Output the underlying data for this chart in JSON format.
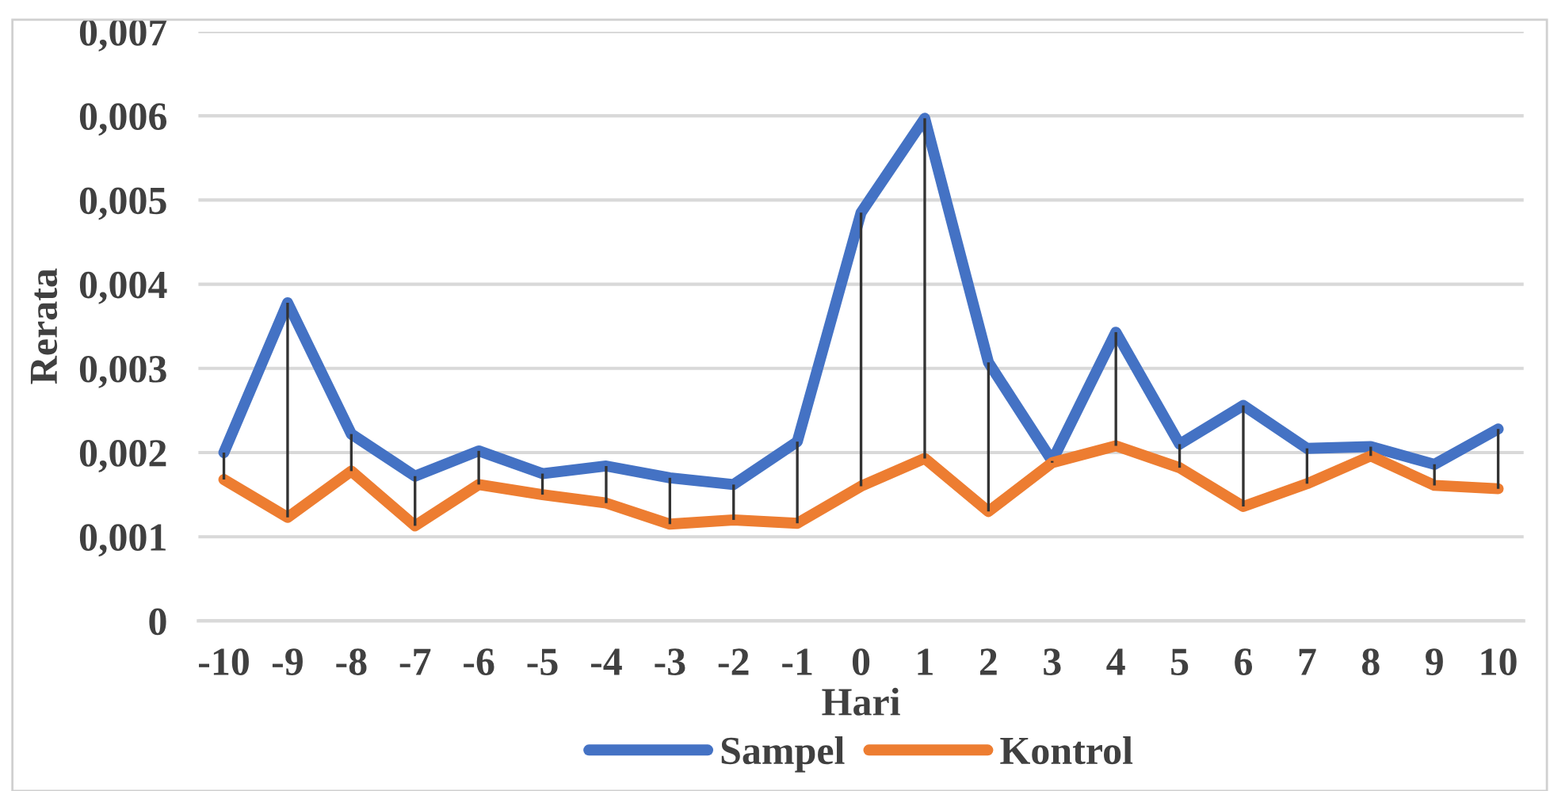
{
  "chart_data": {
    "type": "line",
    "xlabel": "Hari",
    "ylabel": "Rerata",
    "categories": [
      "-10",
      "-9",
      "-8",
      "-7",
      "-6",
      "-5",
      "-4",
      "-3",
      "-2",
      "-1",
      "0",
      "1",
      "2",
      "3",
      "4",
      "5",
      "6",
      "7",
      "8",
      "9",
      "10"
    ],
    "series": [
      {
        "name": "Sampel",
        "color": "#4472c4",
        "values": [
          0.002,
          0.00378,
          0.00222,
          0.00172,
          0.00202,
          0.00175,
          0.00184,
          0.0017,
          0.00162,
          0.00213,
          0.00485,
          0.00597,
          0.00307,
          0.0019,
          0.00343,
          0.0021,
          0.00256,
          0.00205,
          0.00207,
          0.00186,
          0.00228
        ],
        "errors": [
          [
            0.00168,
            0.002
          ],
          [
            0.00123,
            0.00378
          ],
          [
            0.00178,
            0.00222
          ],
          [
            0.00113,
            0.00172
          ],
          [
            0.00162,
            0.00202
          ],
          [
            0.0015,
            0.00175
          ],
          [
            0.0014,
            0.00184
          ],
          [
            0.00115,
            0.0017
          ],
          [
            0.0012,
            0.00162
          ],
          [
            0.00116,
            0.00213
          ],
          [
            0.0016,
            0.00485
          ],
          [
            0.00193,
            0.00597
          ],
          [
            0.0013,
            0.00307
          ],
          [
            0.00188,
            0.0019
          ],
          [
            0.00208,
            0.00343
          ],
          [
            0.00182,
            0.0021
          ],
          [
            0.00136,
            0.00256
          ],
          [
            0.00163,
            0.00205
          ],
          [
            0.00196,
            0.00207
          ],
          [
            0.00161,
            0.00186
          ],
          [
            0.00157,
            0.00228
          ]
        ]
      },
      {
        "name": "Kontrol",
        "color": "#ed7d31",
        "values": [
          0.00168,
          0.00123,
          0.00178,
          0.00113,
          0.00162,
          0.0015,
          0.0014,
          0.00115,
          0.0012,
          0.00116,
          0.0016,
          0.00193,
          0.0013,
          0.00188,
          0.00208,
          0.00182,
          0.00136,
          0.00163,
          0.00196,
          0.00161,
          0.00157
        ]
      }
    ],
    "ylim": [
      0,
      0.007
    ],
    "yticks": [
      0,
      {
        "value": 0.001,
        "label": "0,001"
      },
      {
        "value": 0.002,
        "label": "0,002"
      },
      {
        "value": 0.003,
        "label": "0,003"
      },
      {
        "value": 0.004,
        "label": "0,004"
      },
      {
        "value": 0.005,
        "label": "0,005"
      },
      {
        "value": 0.006,
        "label": "0,006"
      },
      {
        "value": 0.007,
        "label": "0,007"
      }
    ],
    "grid": "y",
    "legend": "bottom",
    "marker": "none",
    "line_style": "solid"
  }
}
